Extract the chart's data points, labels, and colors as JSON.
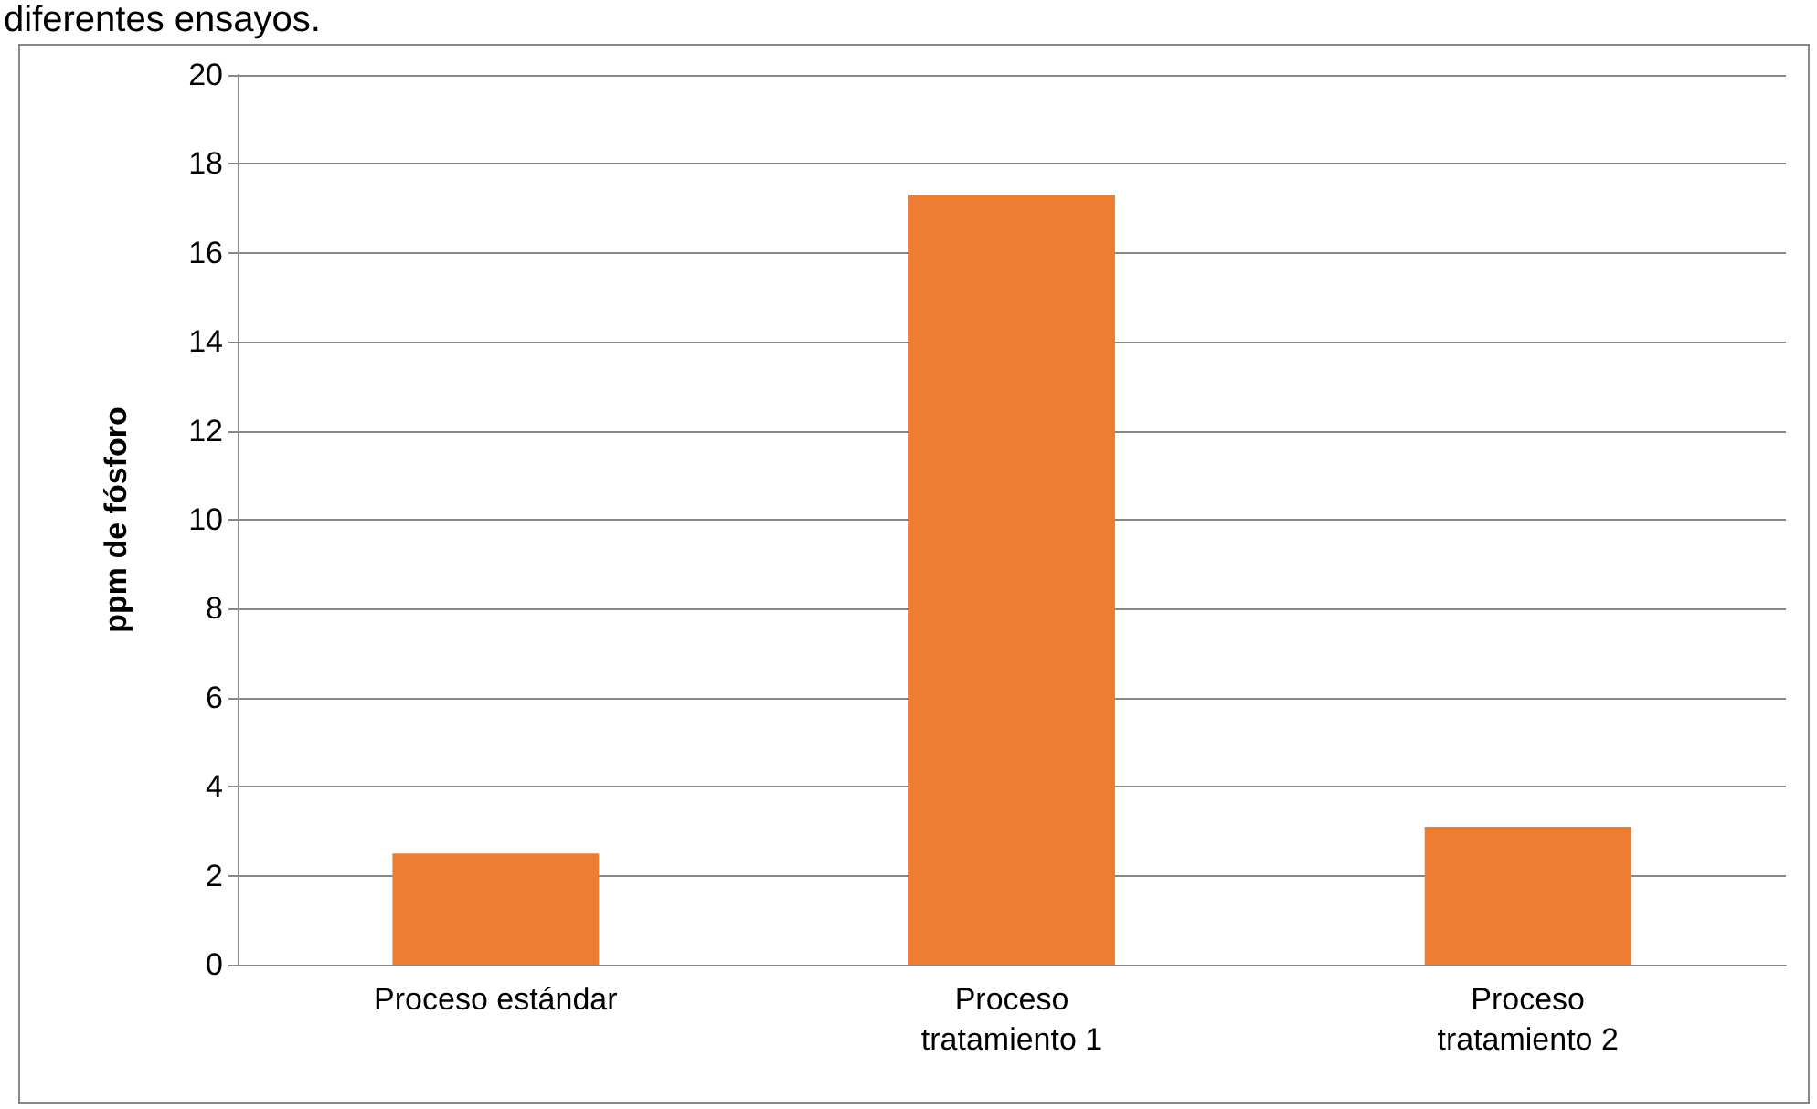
{
  "chart_data": {
    "type": "bar",
    "title": "diferentes ensayos.",
    "ylabel": "ppm de fósforo",
    "categories": [
      "Proceso estándar",
      "Proceso\ntratamiento 1",
      "Proceso\ntratamiento 2"
    ],
    "values": [
      2.5,
      17.3,
      3.1
    ],
    "color": "#ed7d31",
    "ylim": [
      0,
      20
    ],
    "yticks": [
      0,
      2,
      4,
      6,
      8,
      10,
      12,
      14,
      16,
      18,
      20
    ],
    "grid": "y"
  }
}
